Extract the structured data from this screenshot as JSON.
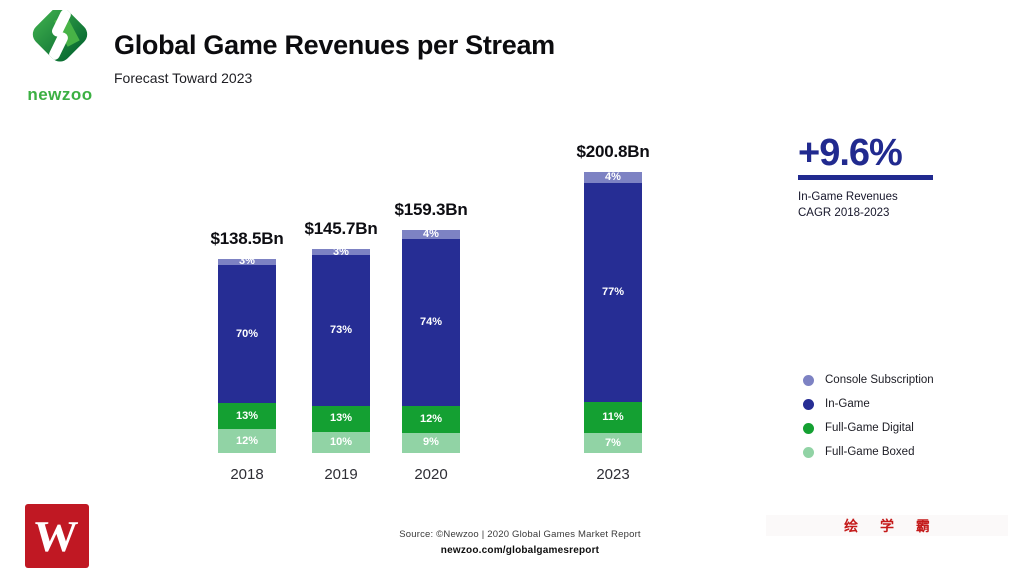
{
  "header": {
    "logo_wordmark": "newzoo",
    "title": "Global Game Revenues per Stream",
    "subtitle": "Forecast Toward 2023"
  },
  "chart_data": {
    "type": "bar",
    "stacked": true,
    "title": "Global Game Revenues per Stream",
    "subtitle": "Forecast Toward 2023",
    "categories": [
      "2018",
      "2019",
      "2020",
      "2023"
    ],
    "totals": [
      "$138.5Bn",
      "$145.7Bn",
      "$159.3Bn",
      "$200.8Bn"
    ],
    "total_values_bn": [
      138.5,
      145.7,
      159.3,
      200.8
    ],
    "series": [
      {
        "name": "Console Subscription",
        "color": "#7d82c3",
        "values": [
          3,
          3,
          4,
          4
        ]
      },
      {
        "name": "In-Game",
        "color": "#262d94",
        "values": [
          70,
          73,
          74,
          77
        ]
      },
      {
        "name": "Full-Game Digital",
        "color": "#14a032",
        "values": [
          13,
          13,
          12,
          11
        ]
      },
      {
        "name": "Full-Game Boxed",
        "color": "#91d3a5",
        "values": [
          12,
          10,
          9,
          7
        ]
      }
    ],
    "value_label_suffix": "%",
    "legend_position": "right",
    "axes": "none",
    "grid": false
  },
  "cagr": {
    "value": "+9.6%",
    "line1": "In-Game Revenues",
    "line2": "CAGR 2018-2023",
    "color": "#212a8f"
  },
  "footer": {
    "source": "Source: ©Newzoo | 2020 Global Games Market Report",
    "url": "newzoo.com/globalgamesreport"
  },
  "watermark": {
    "text": "绘 学 霸",
    "color": "#c41a1a"
  },
  "icons": {
    "newzoo_logo": "green-diamond-logo",
    "corner_logo": "red-w-logo"
  }
}
